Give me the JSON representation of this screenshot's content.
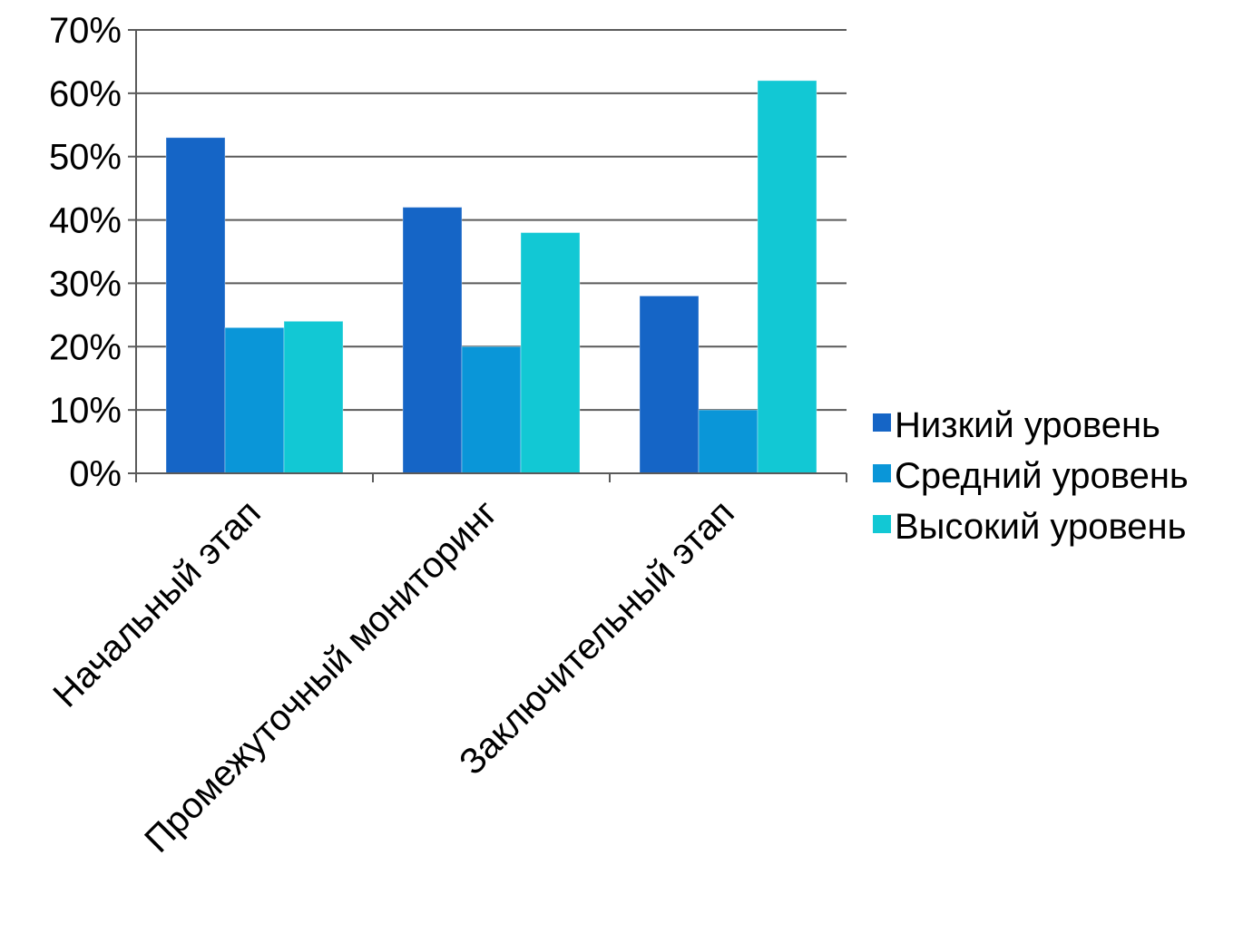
{
  "chart_data": {
    "type": "bar",
    "categories": [
      "Начальный этап",
      "Промежуточный мониторинг",
      "Заключительный этап"
    ],
    "series": [
      {
        "name": "Низкий уровень",
        "values": [
          53,
          42,
          28
        ],
        "color": "#1565c6"
      },
      {
        "name": "Средний уровень",
        "values": [
          23,
          20,
          10
        ],
        "color": "#0a96d8"
      },
      {
        "name": "Высокий уровень",
        "values": [
          24,
          38,
          62
        ],
        "color": "#12c8d4"
      }
    ],
    "ylim": [
      0,
      70
    ],
    "yticks": [
      0,
      10,
      20,
      30,
      40,
      50,
      60,
      70
    ],
    "ytick_labels": [
      "0%",
      "10%",
      "20%",
      "30%",
      "40%",
      "50%",
      "60%",
      "70%"
    ],
    "title": "",
    "xlabel": "",
    "ylabel": "",
    "grid": true,
    "legend_position": "right",
    "gridline_color": "#5a5a5a"
  }
}
